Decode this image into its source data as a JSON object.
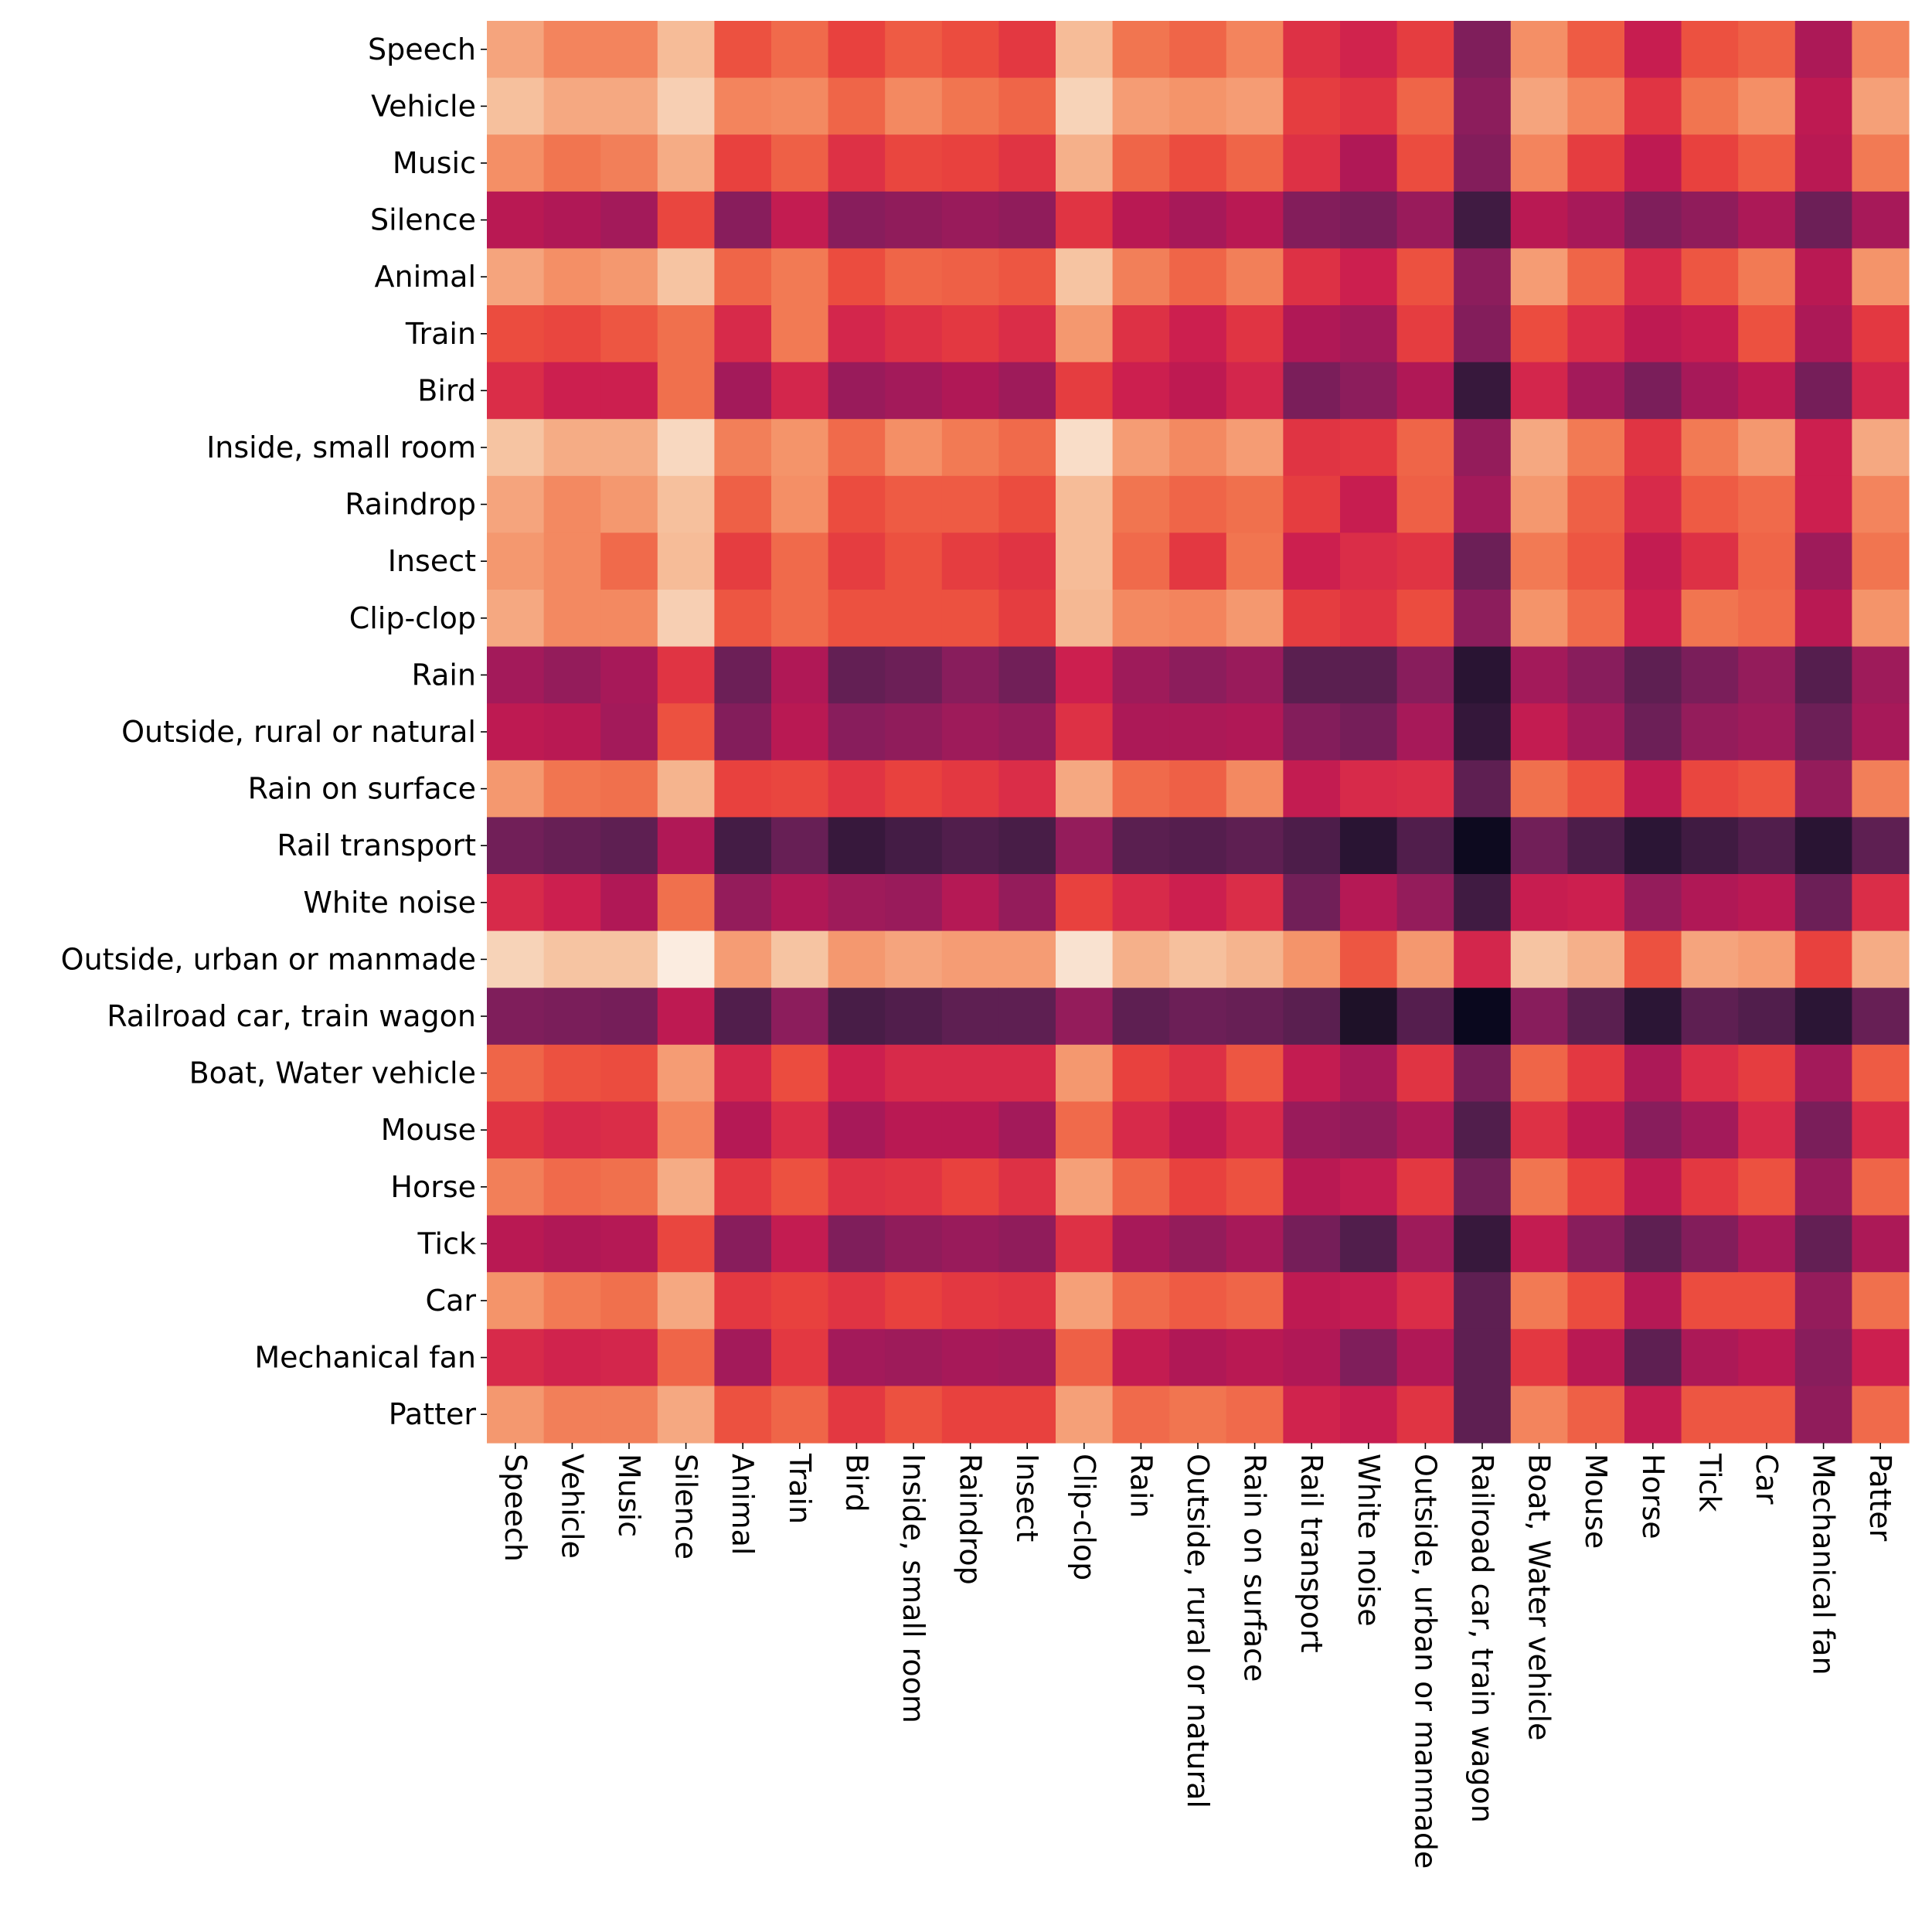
{
  "chart_data": {
    "type": "heatmap",
    "title": "",
    "xlabel": "",
    "ylabel": "",
    "colormap": "rocket",
    "colorbar": false,
    "value_range": [
      0,
      1
    ],
    "value_note": "Values are normalized colormap positions estimated from cell colors (0 = darkest, 1 = lightest).",
    "row_labels": [
      "Speech",
      "Vehicle",
      "Music",
      "Silence",
      "Animal",
      "Train",
      "Bird",
      "Inside, small room",
      "Raindrop",
      "Insect",
      "Clip-clop",
      "Rain",
      "Outside, rural or natural",
      "Rain on surface",
      "Rail transport",
      "White noise",
      "Outside, urban or manmade",
      "Railroad car, train wagon",
      "Boat, Water vehicle",
      "Mouse",
      "Horse",
      "Tick",
      "Car",
      "Mechanical fan",
      "Patter"
    ],
    "col_labels": [
      "Speech",
      "Vehicle",
      "Music",
      "Silence",
      "Animal",
      "Train",
      "Bird",
      "Inside, small room",
      "Raindrop",
      "Insect",
      "Clip-clop",
      "Rain",
      "Outside, rural or natural",
      "Rain on surface",
      "Rail transport",
      "White noise",
      "Outside, urban or manmade",
      "Railroad car, train wagon",
      "Boat, Water vehicle",
      "Mouse",
      "Horse",
      "Tick",
      "Car",
      "Mechanical fan",
      "Patter"
    ],
    "values": [
      [
        0.8,
        0.73,
        0.73,
        0.86,
        0.63,
        0.68,
        0.6,
        0.65,
        0.62,
        0.58,
        0.86,
        0.7,
        0.67,
        0.73,
        0.56,
        0.52,
        0.59,
        0.34,
        0.75,
        0.65,
        0.5,
        0.63,
        0.66,
        0.44,
        0.73
      ],
      [
        0.87,
        0.81,
        0.81,
        0.91,
        0.73,
        0.74,
        0.67,
        0.74,
        0.7,
        0.67,
        0.92,
        0.78,
        0.76,
        0.78,
        0.59,
        0.57,
        0.67,
        0.37,
        0.8,
        0.73,
        0.57,
        0.7,
        0.75,
        0.48,
        0.79
      ],
      [
        0.75,
        0.7,
        0.72,
        0.82,
        0.6,
        0.66,
        0.56,
        0.61,
        0.6,
        0.57,
        0.83,
        0.67,
        0.62,
        0.67,
        0.56,
        0.45,
        0.62,
        0.35,
        0.73,
        0.59,
        0.48,
        0.6,
        0.65,
        0.47,
        0.71
      ],
      [
        0.47,
        0.45,
        0.42,
        0.61,
        0.36,
        0.49,
        0.36,
        0.38,
        0.4,
        0.38,
        0.57,
        0.47,
        0.43,
        0.47,
        0.35,
        0.33,
        0.4,
        0.2,
        0.47,
        0.43,
        0.34,
        0.38,
        0.44,
        0.3,
        0.43
      ],
      [
        0.8,
        0.75,
        0.77,
        0.88,
        0.67,
        0.71,
        0.62,
        0.67,
        0.66,
        0.64,
        0.88,
        0.72,
        0.67,
        0.72,
        0.56,
        0.51,
        0.63,
        0.37,
        0.78,
        0.67,
        0.54,
        0.64,
        0.71,
        0.47,
        0.76
      ],
      [
        0.62,
        0.61,
        0.64,
        0.69,
        0.54,
        0.71,
        0.53,
        0.56,
        0.58,
        0.55,
        0.77,
        0.56,
        0.51,
        0.57,
        0.45,
        0.42,
        0.59,
        0.35,
        0.62,
        0.55,
        0.48,
        0.5,
        0.63,
        0.44,
        0.58
      ],
      [
        0.55,
        0.51,
        0.51,
        0.69,
        0.42,
        0.53,
        0.4,
        0.42,
        0.45,
        0.41,
        0.59,
        0.51,
        0.48,
        0.53,
        0.33,
        0.37,
        0.45,
        0.18,
        0.53,
        0.42,
        0.33,
        0.43,
        0.48,
        0.32,
        0.53
      ],
      [
        0.88,
        0.82,
        0.82,
        0.93,
        0.72,
        0.76,
        0.68,
        0.75,
        0.71,
        0.68,
        0.94,
        0.78,
        0.74,
        0.78,
        0.57,
        0.58,
        0.67,
        0.39,
        0.81,
        0.71,
        0.57,
        0.71,
        0.77,
        0.51,
        0.81
      ],
      [
        0.8,
        0.74,
        0.77,
        0.87,
        0.66,
        0.75,
        0.62,
        0.65,
        0.65,
        0.62,
        0.86,
        0.7,
        0.67,
        0.69,
        0.59,
        0.5,
        0.66,
        0.42,
        0.77,
        0.66,
        0.54,
        0.65,
        0.68,
        0.51,
        0.73
      ],
      [
        0.77,
        0.74,
        0.68,
        0.86,
        0.59,
        0.68,
        0.59,
        0.63,
        0.59,
        0.57,
        0.86,
        0.68,
        0.58,
        0.7,
        0.51,
        0.55,
        0.57,
        0.3,
        0.71,
        0.64,
        0.49,
        0.56,
        0.67,
        0.41,
        0.7
      ],
      [
        0.81,
        0.74,
        0.74,
        0.91,
        0.64,
        0.68,
        0.63,
        0.63,
        0.63,
        0.59,
        0.85,
        0.74,
        0.73,
        0.77,
        0.59,
        0.57,
        0.62,
        0.37,
        0.76,
        0.68,
        0.51,
        0.7,
        0.68,
        0.47,
        0.76
      ],
      [
        0.42,
        0.39,
        0.43,
        0.57,
        0.3,
        0.45,
        0.28,
        0.3,
        0.36,
        0.31,
        0.51,
        0.41,
        0.37,
        0.4,
        0.26,
        0.26,
        0.36,
        0.13,
        0.42,
        0.36,
        0.27,
        0.33,
        0.39,
        0.25,
        0.41
      ],
      [
        0.48,
        0.47,
        0.42,
        0.63,
        0.35,
        0.47,
        0.36,
        0.38,
        0.41,
        0.39,
        0.56,
        0.44,
        0.44,
        0.45,
        0.35,
        0.32,
        0.43,
        0.17,
        0.49,
        0.42,
        0.3,
        0.39,
        0.41,
        0.3,
        0.43
      ],
      [
        0.77,
        0.7,
        0.69,
        0.84,
        0.6,
        0.61,
        0.57,
        0.6,
        0.58,
        0.55,
        0.81,
        0.68,
        0.66,
        0.74,
        0.49,
        0.54,
        0.55,
        0.27,
        0.69,
        0.63,
        0.48,
        0.61,
        0.63,
        0.39,
        0.72
      ],
      [
        0.31,
        0.29,
        0.27,
        0.45,
        0.21,
        0.29,
        0.18,
        0.21,
        0.24,
        0.22,
        0.39,
        0.26,
        0.25,
        0.27,
        0.23,
        0.13,
        0.24,
        0.03,
        0.31,
        0.23,
        0.14,
        0.2,
        0.24,
        0.13,
        0.27
      ],
      [
        0.54,
        0.51,
        0.45,
        0.69,
        0.39,
        0.45,
        0.41,
        0.4,
        0.46,
        0.39,
        0.6,
        0.54,
        0.51,
        0.55,
        0.31,
        0.46,
        0.39,
        0.2,
        0.5,
        0.51,
        0.39,
        0.45,
        0.47,
        0.3,
        0.55
      ],
      [
        0.92,
        0.88,
        0.88,
        0.97,
        0.78,
        0.88,
        0.77,
        0.8,
        0.78,
        0.78,
        0.95,
        0.83,
        0.87,
        0.84,
        0.76,
        0.64,
        0.77,
        0.53,
        0.88,
        0.83,
        0.63,
        0.8,
        0.78,
        0.6,
        0.82
      ],
      [
        0.34,
        0.33,
        0.32,
        0.48,
        0.24,
        0.37,
        0.22,
        0.24,
        0.27,
        0.27,
        0.39,
        0.27,
        0.3,
        0.29,
        0.26,
        0.08,
        0.25,
        0.02,
        0.36,
        0.26,
        0.14,
        0.27,
        0.24,
        0.14,
        0.29
      ],
      [
        0.67,
        0.63,
        0.62,
        0.78,
        0.53,
        0.62,
        0.51,
        0.54,
        0.54,
        0.54,
        0.77,
        0.6,
        0.56,
        0.64,
        0.49,
        0.43,
        0.57,
        0.32,
        0.67,
        0.58,
        0.44,
        0.55,
        0.59,
        0.42,
        0.65
      ],
      [
        0.57,
        0.54,
        0.55,
        0.73,
        0.46,
        0.55,
        0.43,
        0.47,
        0.47,
        0.42,
        0.68,
        0.54,
        0.49,
        0.54,
        0.4,
        0.38,
        0.44,
        0.24,
        0.56,
        0.48,
        0.36,
        0.42,
        0.54,
        0.33,
        0.54
      ],
      [
        0.72,
        0.68,
        0.69,
        0.82,
        0.58,
        0.63,
        0.56,
        0.57,
        0.6,
        0.56,
        0.79,
        0.67,
        0.6,
        0.63,
        0.47,
        0.49,
        0.58,
        0.31,
        0.7,
        0.6,
        0.48,
        0.58,
        0.63,
        0.4,
        0.67
      ],
      [
        0.47,
        0.45,
        0.46,
        0.61,
        0.36,
        0.49,
        0.34,
        0.38,
        0.4,
        0.38,
        0.56,
        0.43,
        0.39,
        0.43,
        0.32,
        0.24,
        0.41,
        0.18,
        0.49,
        0.36,
        0.27,
        0.35,
        0.43,
        0.28,
        0.44
      ],
      [
        0.76,
        0.71,
        0.69,
        0.81,
        0.58,
        0.6,
        0.57,
        0.6,
        0.58,
        0.57,
        0.79,
        0.68,
        0.65,
        0.67,
        0.48,
        0.49,
        0.55,
        0.27,
        0.71,
        0.62,
        0.46,
        0.62,
        0.62,
        0.39,
        0.69
      ],
      [
        0.54,
        0.52,
        0.53,
        0.67,
        0.42,
        0.58,
        0.42,
        0.41,
        0.43,
        0.42,
        0.66,
        0.49,
        0.45,
        0.47,
        0.45,
        0.34,
        0.45,
        0.27,
        0.58,
        0.47,
        0.27,
        0.44,
        0.47,
        0.36,
        0.51
      ],
      [
        0.77,
        0.72,
        0.72,
        0.81,
        0.63,
        0.67,
        0.58,
        0.63,
        0.6,
        0.6,
        0.79,
        0.68,
        0.7,
        0.68,
        0.52,
        0.5,
        0.57,
        0.27,
        0.73,
        0.66,
        0.49,
        0.64,
        0.64,
        0.38,
        0.68
      ]
    ]
  }
}
